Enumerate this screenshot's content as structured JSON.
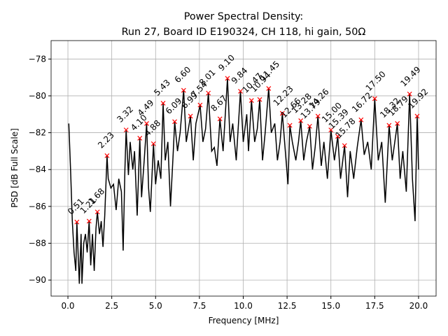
{
  "chart_data": {
    "type": "line",
    "title": "Power Spectral Density:",
    "subtitle": "Run 27, Board ID E190324, CH 118, hi gain, 50Ω",
    "x_label": "Frequency [MHz]",
    "y_label": "PSD [dB Full Scale]",
    "color": "#000000",
    "grid": true,
    "xlim": [
      -0.96,
      21.0
    ],
    "ylim": [
      -90.87,
      -77.0
    ],
    "xticks": [
      {
        "value": 0,
        "label": "0.0"
      },
      {
        "value": 2.5,
        "label": "2.5"
      },
      {
        "value": 5,
        "label": "5.0"
      },
      {
        "value": 7.5,
        "label": "7.5"
      },
      {
        "value": 10,
        "label": "10.0"
      },
      {
        "value": 12.5,
        "label": "12.5"
      },
      {
        "value": 15,
        "label": "15.0"
      },
      {
        "value": 17.5,
        "label": "17.5"
      },
      {
        "value": 20,
        "label": "20.0"
      }
    ],
    "yticks": [
      {
        "value": -90,
        "label": "−90"
      },
      {
        "value": -88,
        "label": "−88"
      },
      {
        "value": -86,
        "label": "−86"
      },
      {
        "value": -84,
        "label": "−84"
      },
      {
        "value": -82,
        "label": "−82"
      },
      {
        "value": -80,
        "label": "−80"
      },
      {
        "value": -78,
        "label": "−78"
      }
    ],
    "x": [
      0.05,
      0.15,
      0.25,
      0.35,
      0.45,
      0.51,
      0.6,
      0.65,
      0.75,
      0.8,
      0.9,
      1.0,
      1.1,
      1.21,
      1.3,
      1.4,
      1.5,
      1.6,
      1.68,
      1.8,
      1.9,
      2.0,
      2.1,
      2.23,
      2.3,
      2.45,
      2.6,
      2.75,
      2.9,
      3.05,
      3.15,
      3.25,
      3.32,
      3.45,
      3.55,
      3.7,
      3.8,
      3.95,
      4.1,
      4.2,
      4.35,
      4.49,
      4.6,
      4.7,
      4.88,
      5.0,
      5.15,
      5.3,
      5.43,
      5.55,
      5.7,
      5.85,
      6.0,
      6.09,
      6.25,
      6.4,
      6.6,
      6.75,
      6.99,
      7.15,
      7.3,
      7.54,
      7.7,
      7.85,
      8.01,
      8.2,
      8.35,
      8.5,
      8.67,
      8.85,
      9.1,
      9.25,
      9.4,
      9.6,
      9.84,
      10.0,
      10.2,
      10.3,
      10.47,
      10.65,
      10.8,
      10.94,
      11.1,
      11.25,
      11.45,
      11.6,
      11.8,
      11.95,
      12.1,
      12.23,
      12.4,
      12.55,
      12.66,
      12.8,
      13.0,
      13.15,
      13.28,
      13.45,
      13.6,
      13.79,
      13.95,
      14.1,
      14.26,
      14.45,
      14.6,
      14.8,
      15.0,
      15.2,
      15.39,
      15.55,
      15.78,
      15.95,
      16.1,
      16.3,
      16.5,
      16.72,
      16.9,
      17.1,
      17.3,
      17.5,
      17.7,
      17.9,
      18.1,
      18.32,
      18.5,
      18.79,
      18.95,
      19.1,
      19.3,
      19.49,
      19.65,
      19.8,
      19.92,
      20.0
    ],
    "values": [
      -81.5,
      -84,
      -86.8,
      -88.5,
      -89.5,
      -86.85,
      -89,
      -90.2,
      -87.5,
      -90.2,
      -88,
      -87.5,
      -88.5,
      -86.8,
      -89.2,
      -87.5,
      -89.5,
      -87.2,
      -86.3,
      -87.5,
      -86.8,
      -88.2,
      -86.5,
      -83.25,
      -84.5,
      -85,
      -84.8,
      -86.2,
      -84.5,
      -85.2,
      -88.4,
      -84,
      -81.85,
      -84.3,
      -82.5,
      -84,
      -83,
      -86.5,
      -82.3,
      -85.5,
      -83.5,
      -81.5,
      -85,
      -86.3,
      -82.6,
      -84.8,
      -83.5,
      -84.5,
      -80.4,
      -83.5,
      -82.5,
      -86,
      -83.2,
      -81.4,
      -83,
      -82,
      -79.7,
      -82.5,
      -81.1,
      -83.5,
      -81.5,
      -80.5,
      -82.5,
      -81.8,
      -79.85,
      -83,
      -82.8,
      -83.8,
      -81.25,
      -83,
      -79.05,
      -82.5,
      -81.5,
      -83.5,
      -79.75,
      -82.5,
      -81,
      -83,
      -80.25,
      -82.5,
      -81.8,
      -80.2,
      -83.5,
      -82,
      -79.6,
      -82,
      -81.5,
      -83.5,
      -82.5,
      -80.95,
      -83,
      -84.8,
      -81.6,
      -82.5,
      -83.5,
      -82.5,
      -81.35,
      -83.5,
      -82.5,
      -81.65,
      -84,
      -82.8,
      -81.1,
      -83.8,
      -82.5,
      -84.5,
      -81.85,
      -83.5,
      -82.2,
      -84.5,
      -82.7,
      -85.5,
      -83,
      -84.5,
      -82.8,
      -81.3,
      -83.2,
      -82.5,
      -84,
      -80.15,
      -83.5,
      -82.5,
      -85.8,
      -81.6,
      -83.5,
      -81.5,
      -84.5,
      -83,
      -85.2,
      -79.9,
      -84.5,
      -86.8,
      -81.1,
      -84
    ],
    "peaks": {
      "color": "#ff0000",
      "x": [
        0.51,
        1.21,
        1.68,
        2.23,
        3.32,
        4.1,
        4.49,
        4.88,
        5.43,
        6.09,
        6.6,
        6.99,
        7.54,
        8.01,
        8.67,
        9.1,
        9.84,
        10.47,
        10.94,
        11.45,
        12.23,
        12.66,
        13.28,
        13.79,
        14.26,
        15.0,
        15.39,
        15.78,
        16.72,
        17.5,
        18.32,
        18.79,
        19.49,
        19.92
      ],
      "values": [
        -86.85,
        -86.8,
        -86.3,
        -83.25,
        -81.85,
        -82.3,
        -81.5,
        -82.6,
        -80.4,
        -81.4,
        -79.7,
        -81.1,
        -80.5,
        -79.85,
        -81.25,
        -79.05,
        -79.75,
        -80.25,
        -80.2,
        -79.6,
        -80.95,
        -81.6,
        -81.35,
        -81.65,
        -81.1,
        -81.85,
        -82.2,
        -82.7,
        -81.3,
        -80.15,
        -81.6,
        -81.5,
        -79.9,
        -81.1
      ],
      "labels": [
        "0.51",
        "1.21",
        "1.68",
        "2.23",
        "3.32",
        "4.10",
        "4.49",
        "4.88",
        "5.43",
        "6.09",
        "6.60",
        "6.99",
        "7.54",
        "8.01",
        "8.67",
        "9.10",
        "9.84",
        "10.47",
        "10.94",
        "11.45",
        "12.23",
        "12.66",
        "13.28",
        "13.79",
        "14.26",
        "15.00",
        "15.39",
        "15.78",
        "16.72",
        "17.50",
        "18.32",
        "18.79",
        "19.49",
        "19.92"
      ]
    }
  }
}
